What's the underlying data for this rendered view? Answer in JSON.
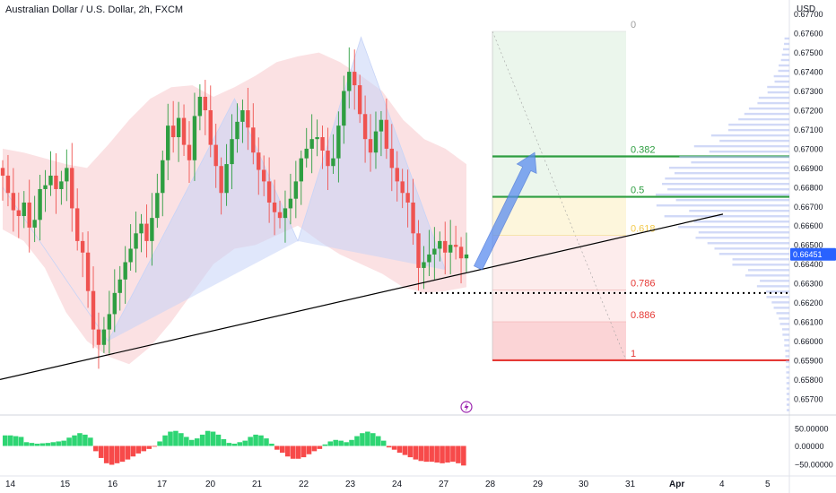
{
  "header": {
    "title": "Australian Dollar / U.S. Dollar, 2h, FXCM",
    "currency": "USD"
  },
  "colors": {
    "up": "#26a69a",
    "up_candle": "#2e9e41",
    "down": "#ef5350",
    "accent": "#2962ff",
    "envelope": "#f8c9cc",
    "pattern": "#c7d4f7",
    "fib_green": "#2e9e41",
    "fib_red": "#e53935",
    "fib_gold": "#f2c94c",
    "histogram_up": "#2ed573",
    "histogram_down": "#f74a4a"
  },
  "chart_data": [
    {
      "type": "candlestick",
      "xaxis": {
        "labels": [
          "14",
          "15",
          "16",
          "17",
          "20",
          "21",
          "22",
          "23",
          "24",
          "27",
          "28",
          "29",
          "30",
          "31",
          "Apr",
          "4",
          "5"
        ]
      },
      "yaxis": {
        "range": [
          0.6562,
          0.6768
        ],
        "ticks": [
          "0.67700",
          "0.67600",
          "0.67500",
          "0.67400",
          "0.67300",
          "0.67200",
          "0.67100",
          "0.67000",
          "0.66900",
          "0.66800",
          "0.66700",
          "0.66600",
          "0.66500",
          "0.66400",
          "0.66300",
          "0.66200",
          "0.66100",
          "0.66000",
          "0.65900",
          "0.65800",
          "0.65700"
        ]
      },
      "last_price": {
        "value": 0.66451,
        "label": "0.66451"
      },
      "close_path": [
        0.6686,
        0.6677,
        0.6668,
        0.6665,
        0.6672,
        0.6659,
        0.6663,
        0.6679,
        0.6681,
        0.6686,
        0.6679,
        0.6683,
        0.669,
        0.6669,
        0.6652,
        0.6646,
        0.6626,
        0.6606,
        0.6598,
        0.6606,
        0.6614,
        0.6625,
        0.6632,
        0.6641,
        0.6648,
        0.6656,
        0.6661,
        0.6652,
        0.6664,
        0.6677,
        0.6694,
        0.6712,
        0.6706,
        0.6716,
        0.6702,
        0.6694,
        0.6717,
        0.6727,
        0.672,
        0.6702,
        0.6691,
        0.6677,
        0.6692,
        0.6705,
        0.6714,
        0.672,
        0.6711,
        0.6698,
        0.6689,
        0.6683,
        0.6672,
        0.6667,
        0.6664,
        0.6669,
        0.6674,
        0.6683,
        0.6695,
        0.67,
        0.6705,
        0.6706,
        0.6699,
        0.6691,
        0.6695,
        0.6712,
        0.673,
        0.674,
        0.6733,
        0.6718,
        0.6705,
        0.6698,
        0.6709,
        0.6715,
        0.67,
        0.669,
        0.6683,
        0.6677,
        0.6672,
        0.6656,
        0.6638,
        0.6641,
        0.6645,
        0.6648,
        0.6652,
        0.6646,
        0.665,
        0.6649,
        0.6643,
        0.6645
      ],
      "envelope": {
        "upper": [
          0.67,
          0.6698,
          0.6695,
          0.6692,
          0.669,
          0.6702,
          0.6715,
          0.6726,
          0.6732,
          0.6733,
          0.6727,
          0.6732,
          0.6738,
          0.6745,
          0.6748,
          0.675,
          0.6745,
          0.6738,
          0.673,
          0.6715,
          0.6705,
          0.67,
          0.6692
        ],
        "lower": [
          0.6658,
          0.6652,
          0.6638,
          0.6615,
          0.66,
          0.6592,
          0.6588,
          0.6597,
          0.661,
          0.6625,
          0.664,
          0.6648,
          0.665,
          0.6655,
          0.666,
          0.6652,
          0.6645,
          0.664,
          0.6635,
          0.6628,
          0.6625,
          0.6626,
          0.6628
        ]
      },
      "harmonic_pattern": [
        {
          "x": 0,
          "y": 0.668
        },
        {
          "x": 5,
          "y": 0.66
        },
        {
          "x": 11,
          "y": 0.6726
        },
        {
          "x": 14,
          "y": 0.6652
        },
        {
          "x": 17,
          "y": 0.6758
        },
        {
          "x": 21,
          "y": 0.6637
        }
      ],
      "trendline": {
        "from": {
          "x": 0,
          "y": 0.658
        },
        "to": {
          "x": 27,
          "y": 0.6666
        }
      },
      "support_level": 0.6625,
      "fibonacci": [
        {
          "label": "0",
          "value": 0.6761
        },
        {
          "label": "0.382",
          "value": 0.6696
        },
        {
          "label": "0.5",
          "value": 0.6675
        },
        {
          "label": "0.618",
          "value": 0.6655
        },
        {
          "label": "0.786",
          "value": 0.66265
        },
        {
          "label": "0.886",
          "value": 0.661
        },
        {
          "label": "1",
          "value": 0.659
        }
      ],
      "projection_arrow": {
        "from": 0.6638,
        "to": 0.6698
      }
    },
    {
      "type": "bar",
      "title": "oscillator histogram",
      "yaxis": {
        "ticks": [
          "50.00000",
          "0.00000",
          "−50.00000"
        ]
      },
      "values": [
        28,
        28,
        26,
        24,
        10,
        8,
        6,
        7,
        8,
        10,
        12,
        14,
        22,
        28,
        34,
        30,
        22,
        -14,
        -32,
        -46,
        -50,
        -46,
        -42,
        -36,
        -28,
        -20,
        -14,
        -8,
        -2,
        12,
        28,
        38,
        40,
        34,
        24,
        16,
        20,
        30,
        40,
        38,
        30,
        18,
        8,
        6,
        10,
        14,
        24,
        30,
        28,
        20,
        6,
        -10,
        -18,
        -28,
        -34,
        -34,
        -30,
        -22,
        -14,
        -8,
        4,
        12,
        16,
        14,
        10,
        16,
        26,
        34,
        38,
        34,
        26,
        14,
        -4,
        -10,
        -18,
        -24,
        -30,
        -36,
        -40,
        -42,
        -42,
        -44,
        -46,
        -44,
        -42,
        -46,
        -52
      ]
    }
  ]
}
